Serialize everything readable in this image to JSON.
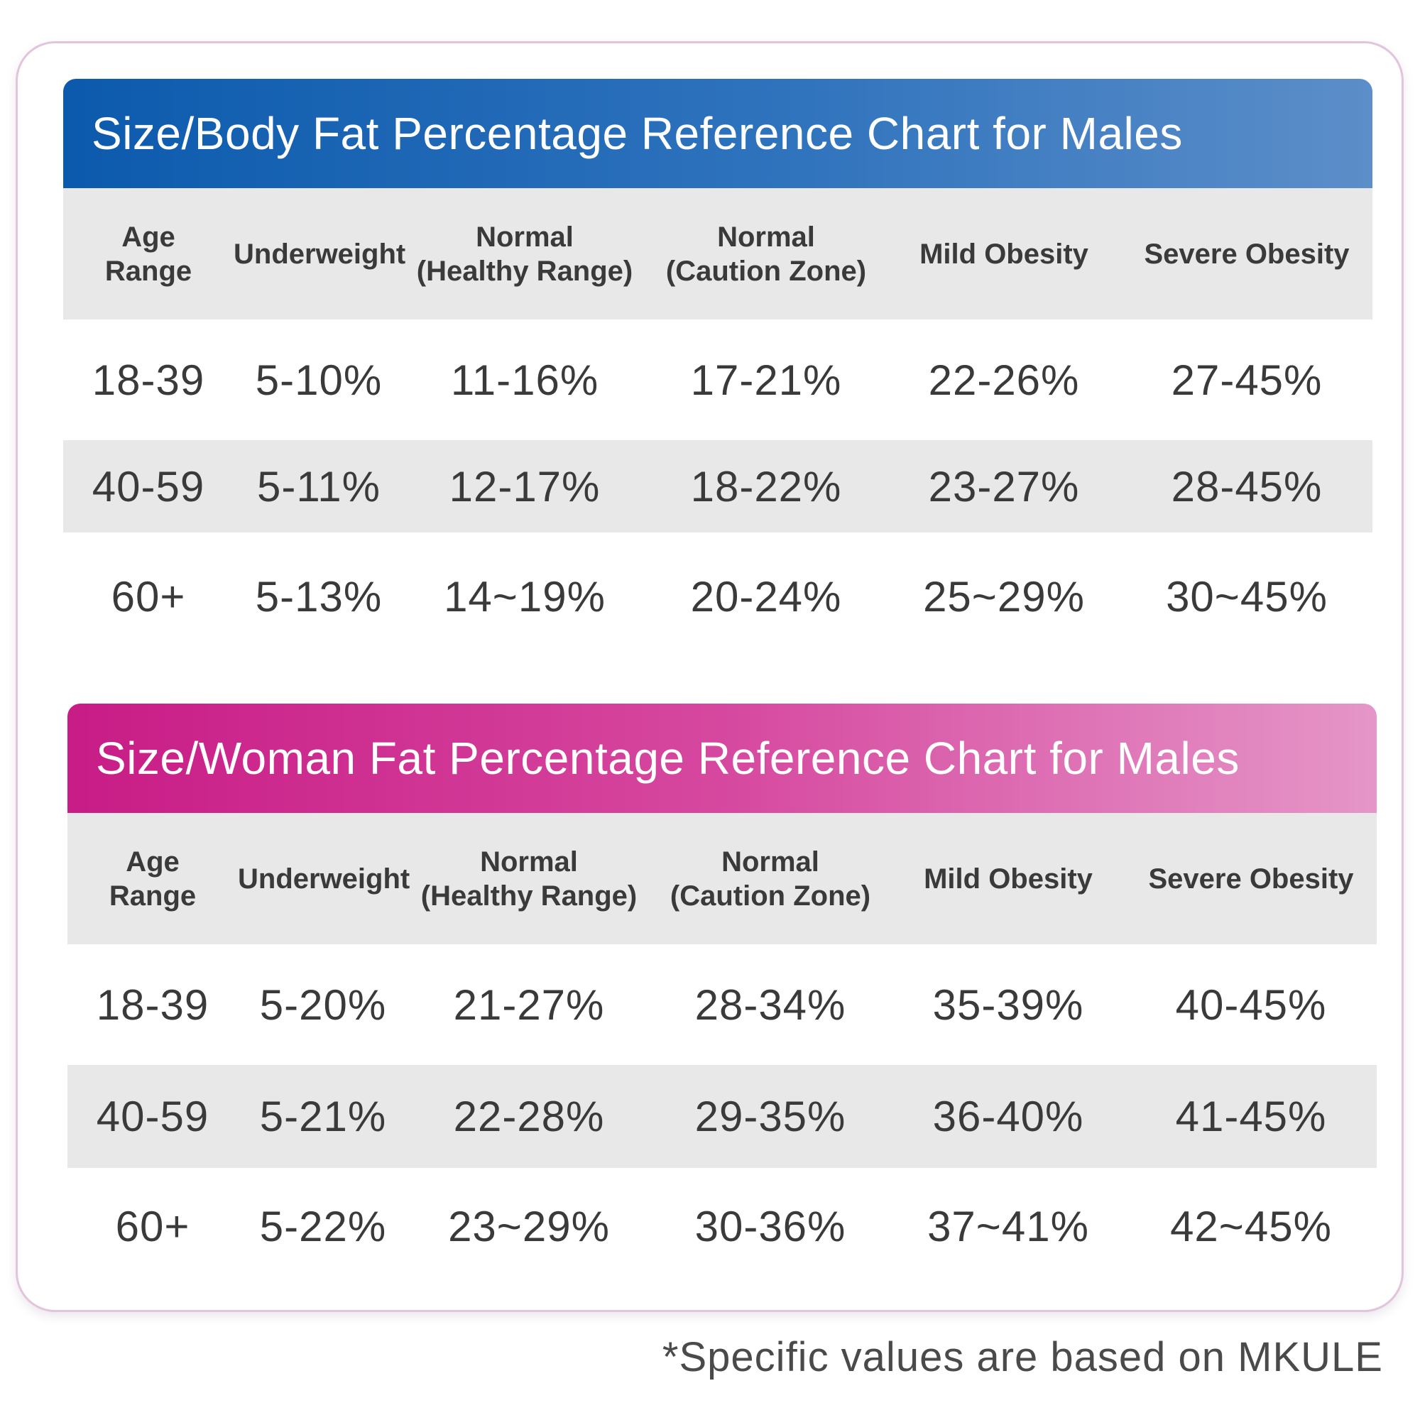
{
  "male": {
    "title": "Size/Body Fat Percentage Reference Chart for Males",
    "headers": [
      "Age\nRange",
      "Underweight",
      "Normal\n(Healthy Range)",
      "Normal\n(Caution Zone)",
      "Mild Obesity",
      "Severe Obesity"
    ],
    "rows": [
      [
        "18-39",
        "5-10%",
        "11-16%",
        "17-21%",
        "22-26%",
        "27-45%"
      ],
      [
        "40-59",
        "5-11%",
        "12-17%",
        "18-22%",
        "23-27%",
        "28-45%"
      ],
      [
        "60+",
        "5-13%",
        "14~19%",
        "20-24%",
        "25~29%",
        "30~45%"
      ]
    ]
  },
  "female": {
    "title": "Size/Woman Fat Percentage Reference Chart for Males",
    "headers": [
      "Age\nRange",
      "Underweight",
      "Normal\n(Healthy Range)",
      "Normal\n(Caution Zone)",
      "Mild Obesity",
      "Severe Obesity"
    ],
    "rows": [
      [
        "18-39",
        "5-20%",
        "21-27%",
        "28-34%",
        "35-39%",
        "40-45%"
      ],
      [
        "40-59",
        "5-21%",
        "22-28%",
        "29-35%",
        "36-40%",
        "41-45%"
      ],
      [
        "60+",
        "5-22%",
        "23~29%",
        "30-36%",
        "37~41%",
        "42~45%"
      ]
    ]
  },
  "footnote": "*Specific values are based on MKULE",
  "colors": {
    "male_banner_start": "#0c5aad",
    "male_banner_end": "#5c8ec9",
    "female_banner_start": "#c81c86",
    "female_banner_end": "#e596c8",
    "row_shade": "#e8e8e9",
    "card_border": "#e2c4dc"
  }
}
